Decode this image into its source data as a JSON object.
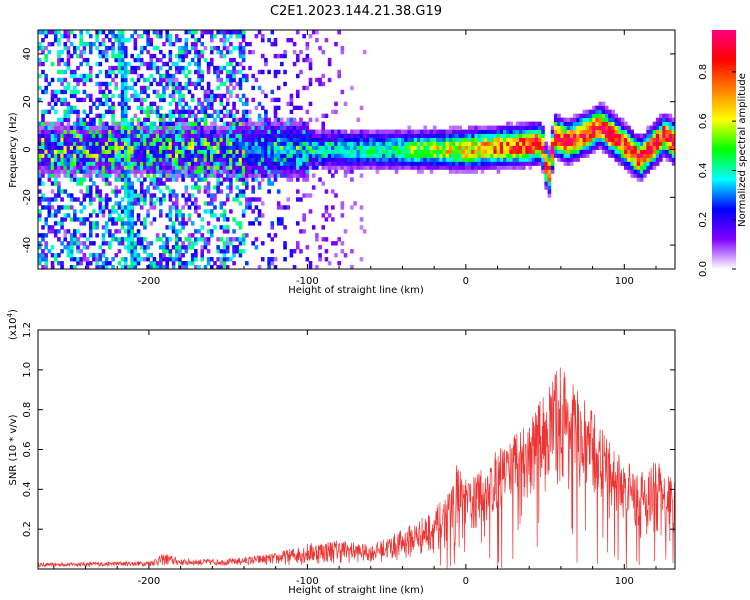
{
  "title": "C2E1.2023.144.21.38.G19",
  "chart_data": [
    {
      "type": "heatmap",
      "xlabel": "Height of straight line (km)",
      "ylabel": "Frequency (Hz)",
      "xlim": [
        -270,
        132
      ],
      "ylim": [
        -50,
        50
      ],
      "xticks": [
        -200,
        -100,
        0,
        100
      ],
      "yticks": [
        -40,
        -20,
        0,
        20,
        40
      ],
      "colorbar": {
        "label": "Normalized spectral amplitude",
        "range": [
          0,
          0.97
        ],
        "ticks": [
          0.0,
          0.2,
          0.4,
          0.6,
          0.8
        ],
        "colors": [
          "#ffffff",
          "#8000ff",
          "#0000ff",
          "#00ffff",
          "#00ff00",
          "#ffff00",
          "#ff8000",
          "#ff0000",
          "#ff0080"
        ]
      },
      "ridge": [
        {
          "x": -270,
          "f": 0
        },
        {
          "x": -150,
          "f": 0
        },
        {
          "x": -100,
          "f": 0
        },
        {
          "x": -50,
          "f": 0
        },
        {
          "x": 0,
          "f": 0
        },
        {
          "x": 40,
          "f": 2
        },
        {
          "x": 48,
          "f": 3
        },
        {
          "x": 52,
          "f": -12
        },
        {
          "x": 56,
          "f": 6
        },
        {
          "x": 65,
          "f": 3
        },
        {
          "x": 85,
          "f": 10
        },
        {
          "x": 100,
          "f": 2
        },
        {
          "x": 110,
          "f": -4
        },
        {
          "x": 125,
          "f": 6
        },
        {
          "x": 132,
          "f": 3
        }
      ],
      "streak": {
        "x_top": -218,
        "x_bottom": -210
      },
      "grid": false
    },
    {
      "type": "line",
      "xlabel": "Height of straight line (km)",
      "ylabel": "SNR (10 * v/v)",
      "y_multiplier": "(x10",
      "y_multiplier_exp": "4",
      "y_multiplier_close": ")",
      "xlim": [
        -270,
        132
      ],
      "ylim": [
        0,
        1.2
      ],
      "xticks": [
        -200,
        -100,
        0,
        100
      ],
      "yticks": [
        0.2,
        0.4,
        0.6,
        0.8,
        1.0,
        1.2
      ],
      "ytick_labels": [
        "0.2",
        "0.4",
        "0.6",
        "0.8",
        "1.0",
        "1.2"
      ],
      "color": "#ee3333",
      "envelope": [
        {
          "x": -270,
          "y": 0.03
        },
        {
          "x": -200,
          "y": 0.04
        },
        {
          "x": -190,
          "y": 0.08
        },
        {
          "x": -180,
          "y": 0.05
        },
        {
          "x": -150,
          "y": 0.05
        },
        {
          "x": -120,
          "y": 0.08
        },
        {
          "x": -100,
          "y": 0.13
        },
        {
          "x": -80,
          "y": 0.15
        },
        {
          "x": -60,
          "y": 0.12
        },
        {
          "x": -40,
          "y": 0.2
        },
        {
          "x": -20,
          "y": 0.3
        },
        {
          "x": -10,
          "y": 0.4
        },
        {
          "x": -5,
          "y": 0.55
        },
        {
          "x": 0,
          "y": 0.45
        },
        {
          "x": 10,
          "y": 0.5
        },
        {
          "x": 20,
          "y": 0.6
        },
        {
          "x": 40,
          "y": 0.75
        },
        {
          "x": 50,
          "y": 0.9
        },
        {
          "x": 60,
          "y": 1.05
        },
        {
          "x": 70,
          "y": 0.9
        },
        {
          "x": 80,
          "y": 0.8
        },
        {
          "x": 90,
          "y": 0.65
        },
        {
          "x": 100,
          "y": 0.55
        },
        {
          "x": 110,
          "y": 0.5
        },
        {
          "x": 120,
          "y": 0.55
        },
        {
          "x": 132,
          "y": 0.45
        }
      ],
      "floor": [
        {
          "x": -270,
          "y": 0.01
        },
        {
          "x": -100,
          "y": 0.02
        },
        {
          "x": -40,
          "y": 0.04
        },
        {
          "x": -10,
          "y": 0.1
        },
        {
          "x": 10,
          "y": 0.2
        },
        {
          "x": 30,
          "y": 0.35
        },
        {
          "x": 60,
          "y": 0.4
        },
        {
          "x": 80,
          "y": 0.35
        },
        {
          "x": 100,
          "y": 0.2
        },
        {
          "x": 132,
          "y": 0.1
        }
      ]
    }
  ]
}
